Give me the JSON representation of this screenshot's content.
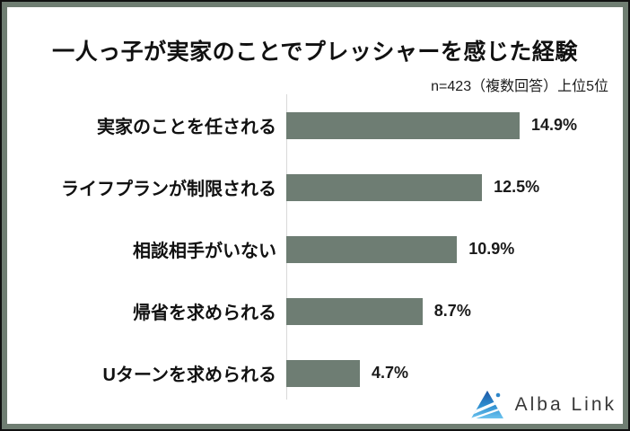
{
  "header": {
    "title": "一人っ子が実家のことでプレッシャーを感じた経験",
    "subtitle": "n=423（複数回答）上位5位"
  },
  "chart_data": {
    "type": "bar",
    "orientation": "horizontal",
    "title": "一人っ子が実家のことでプレッシャーを感じた経験",
    "note": "n=423（複数回答）上位5位",
    "categories": [
      "実家のことを任される",
      "ライフプランが制限される",
      "相談相手がいない",
      "帰省を求められる",
      "Uターンを求められる"
    ],
    "values": [
      14.9,
      12.5,
      10.9,
      8.7,
      4.7
    ],
    "value_labels": [
      "14.9%",
      "12.5%",
      "10.9%",
      "8.7%",
      "4.7%"
    ],
    "unit": "%",
    "xlim": [
      0,
      16
    ],
    "grid": false,
    "legend": false,
    "bar_color": "#6e7d73",
    "axis_line_color": "#d9d9d9"
  },
  "frame": {
    "outer_border_color": "#101010",
    "inner_border_color": "#6f7e72"
  },
  "logo": {
    "text": "Alba Link",
    "icon": "alba-link-triangle-icon",
    "icon_colors": {
      "dark_blue": "#1d56a5",
      "mid_blue": "#2f8fd0",
      "light_blue": "#6cc4ef",
      "dot_blue": "#2e86c9"
    }
  }
}
